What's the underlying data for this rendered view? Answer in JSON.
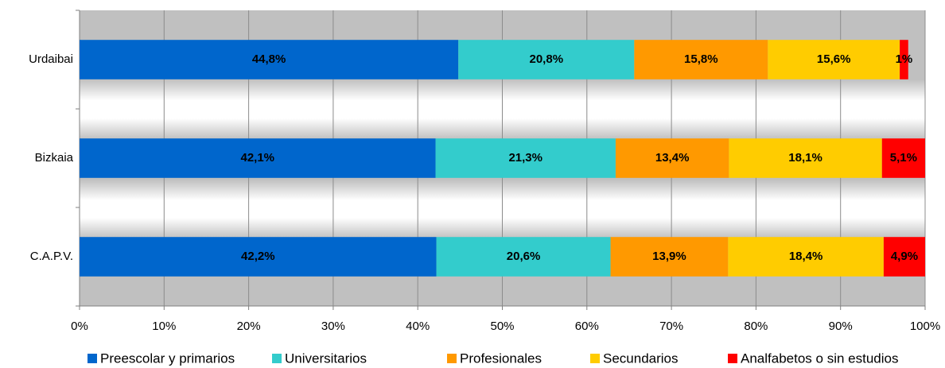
{
  "chart_data": {
    "type": "bar",
    "orientation": "horizontal",
    "stacked": true,
    "categories": [
      "Urdaibai",
      "Bizkaia",
      "C.A.P.V."
    ],
    "series": [
      {
        "name": "Preescolar y primarios",
        "color": "#0066cc",
        "values": [
          44.8,
          42.1,
          42.2
        ],
        "value_labels": [
          "44,8%",
          "42,1%",
          "42,2%"
        ]
      },
      {
        "name": "Universitarios",
        "color": "#33cccc",
        "values": [
          20.8,
          21.3,
          20.6
        ],
        "value_labels": [
          "20,8%",
          "21,3%",
          "20,6%"
        ]
      },
      {
        "name": "Profesionales",
        "color": "#ff9900",
        "values": [
          15.8,
          13.4,
          13.9
        ],
        "value_labels": [
          "15,8%",
          "13,4%",
          "13,9%"
        ]
      },
      {
        "name": "Secundarios",
        "color": "#ffcc00",
        "values": [
          15.6,
          18.1,
          18.4
        ],
        "value_labels": [
          "15,6%",
          "18,1%",
          "18,4%"
        ]
      },
      {
        "name": "Analfabetos o sin estudios",
        "color": "#ff0000",
        "values": [
          1,
          5.1,
          4.9
        ],
        "value_labels": [
          "1%",
          "5,1%",
          "4,9%"
        ]
      }
    ],
    "xlim": [
      0,
      100
    ],
    "xticks": [
      {
        "value": 0,
        "label": "0%"
      },
      {
        "value": 10,
        "label": "10%"
      },
      {
        "value": 20,
        "label": "20%"
      },
      {
        "value": 30,
        "label": "30%"
      },
      {
        "value": 40,
        "label": "40%"
      },
      {
        "value": 50,
        "label": "50%"
      },
      {
        "value": 60,
        "label": "60%"
      },
      {
        "value": 70,
        "label": "70%"
      },
      {
        "value": 80,
        "label": "80%"
      },
      {
        "value": 90,
        "label": "90%"
      },
      {
        "value": 100,
        "label": "100%"
      }
    ],
    "grid": true,
    "legend": "bottom"
  }
}
